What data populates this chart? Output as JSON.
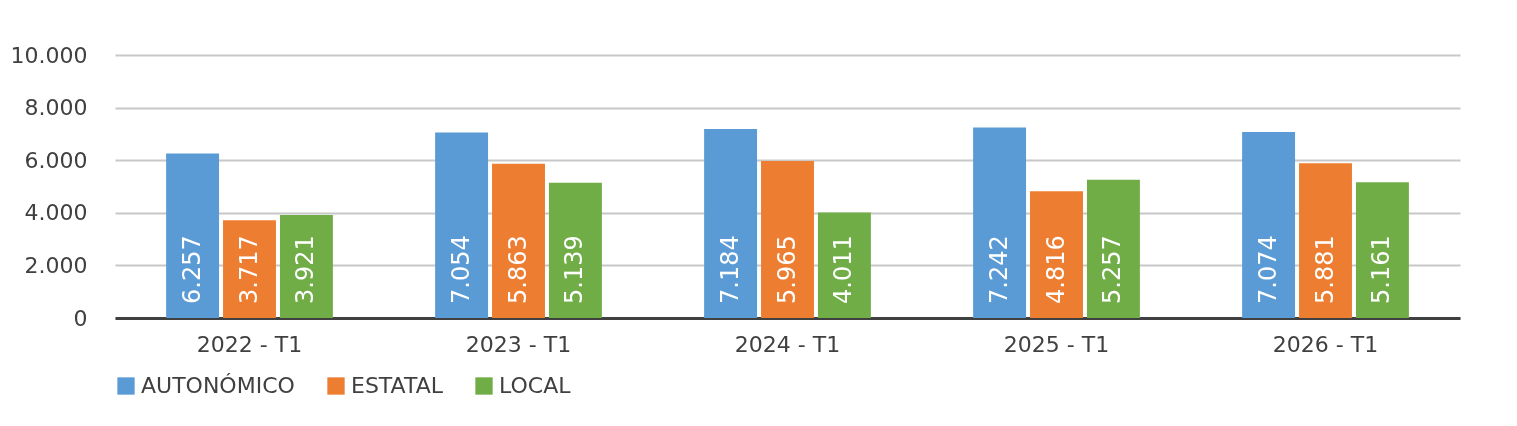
{
  "chart_data": {
    "type": "bar",
    "categories": [
      "2022 - T1",
      "2023 - T1",
      "2024 - T1",
      "2025 - T1",
      "2026 - T1"
    ],
    "series": [
      {
        "name": "AUTONÓMICO",
        "color": "#5b9bd5",
        "values": [
          6257,
          7054,
          7184,
          7242,
          7074
        ],
        "value_labels": [
          "6.257",
          "7.054",
          "7.184",
          "7.242",
          "7.074"
        ]
      },
      {
        "name": "ESTATAL",
        "color": "#ed7d31",
        "values": [
          3717,
          5863,
          5965,
          4816,
          5881
        ],
        "value_labels": [
          "3.717",
          "5.863",
          "5.965",
          "4.816",
          "5.881"
        ]
      },
      {
        "name": "LOCAL",
        "color": "#70ad47",
        "values": [
          3921,
          5139,
          4011,
          5257,
          5161
        ],
        "value_labels": [
          "3.921",
          "5.139",
          "4.011",
          "5.257",
          "5.161"
        ]
      }
    ],
    "ylim": [
      0,
      10000
    ],
    "yticks": [
      {
        "value": 0,
        "label": "0"
      },
      {
        "value": 2000,
        "label": "2.000"
      },
      {
        "value": 4000,
        "label": "4.000"
      },
      {
        "value": 6000,
        "label": "6.000"
      },
      {
        "value": 8000,
        "label": "8.000"
      },
      {
        "value": 10000,
        "label": "10.000"
      }
    ],
    "grid": "y",
    "legend": "bottom"
  }
}
